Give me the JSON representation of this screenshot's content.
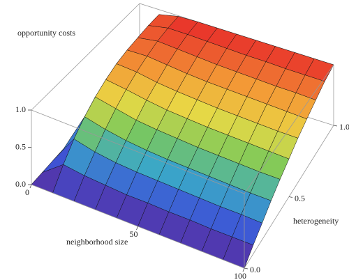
{
  "chart_data": {
    "type": "surface",
    "xlabel": "neighborhood size",
    "ylabel": "heterogeneity",
    "zlabel": "opportunity costs",
    "x": [
      0,
      10,
      20,
      30,
      40,
      50,
      60,
      70,
      80,
      90,
      100
    ],
    "y": [
      0,
      0.1,
      0.2,
      0.3,
      0.4,
      0.5,
      0.6,
      0.7,
      0.8,
      0.9,
      1
    ],
    "z": [
      [
        0,
        0,
        0,
        0,
        0,
        0,
        0,
        0,
        0,
        0,
        0
      ],
      [
        0,
        0.22,
        0.18,
        0.16,
        0.14,
        0.14,
        0.13,
        0.13,
        0.12,
        0.12,
        0.12
      ],
      [
        0,
        0.41,
        0.34,
        0.3,
        0.28,
        0.27,
        0.26,
        0.25,
        0.24,
        0.24,
        0.23
      ],
      [
        0,
        0.56,
        0.49,
        0.44,
        0.41,
        0.39,
        0.38,
        0.37,
        0.36,
        0.35,
        0.35
      ],
      [
        0,
        0.68,
        0.62,
        0.56,
        0.53,
        0.51,
        0.49,
        0.48,
        0.47,
        0.46,
        0.46
      ],
      [
        0,
        0.77,
        0.73,
        0.68,
        0.64,
        0.62,
        0.6,
        0.59,
        0.58,
        0.57,
        0.56
      ],
      [
        0,
        0.84,
        0.82,
        0.77,
        0.74,
        0.72,
        0.7,
        0.69,
        0.68,
        0.67,
        0.67
      ],
      [
        0,
        0.88,
        0.89,
        0.86,
        0.83,
        0.81,
        0.8,
        0.79,
        0.78,
        0.77,
        0.76
      ],
      [
        0,
        0.9,
        0.95,
        0.93,
        0.91,
        0.89,
        0.88,
        0.87,
        0.86,
        0.86,
        0.85
      ],
      [
        0,
        0.92,
        0.98,
        0.98,
        0.97,
        0.96,
        0.95,
        0.95,
        0.94,
        0.94,
        0.94
      ],
      [
        0,
        0.92,
        0.99,
        1,
        1,
        1,
        1,
        1,
        1,
        1,
        1
      ]
    ],
    "xlim": [
      0,
      100
    ],
    "ylim": [
      0,
      1
    ],
    "zlim": [
      0,
      1
    ],
    "xticks": [
      0,
      50,
      100
    ],
    "yticks": [
      {
        "value": 0,
        "label": "0.0"
      },
      {
        "value": 0.5,
        "label": "0.5"
      },
      {
        "value": 1,
        "label": "1.0"
      }
    ],
    "zticks": [
      {
        "value": 0,
        "label": "0.0"
      },
      {
        "value": 0.5,
        "label": "0.5"
      },
      {
        "value": 1,
        "label": "1.0"
      }
    ],
    "colormap": [
      "#5b2a9a",
      "#3d55d6",
      "#3aa7c8",
      "#7cc95a",
      "#e9d945",
      "#f39a36",
      "#e8302a"
    ]
  }
}
